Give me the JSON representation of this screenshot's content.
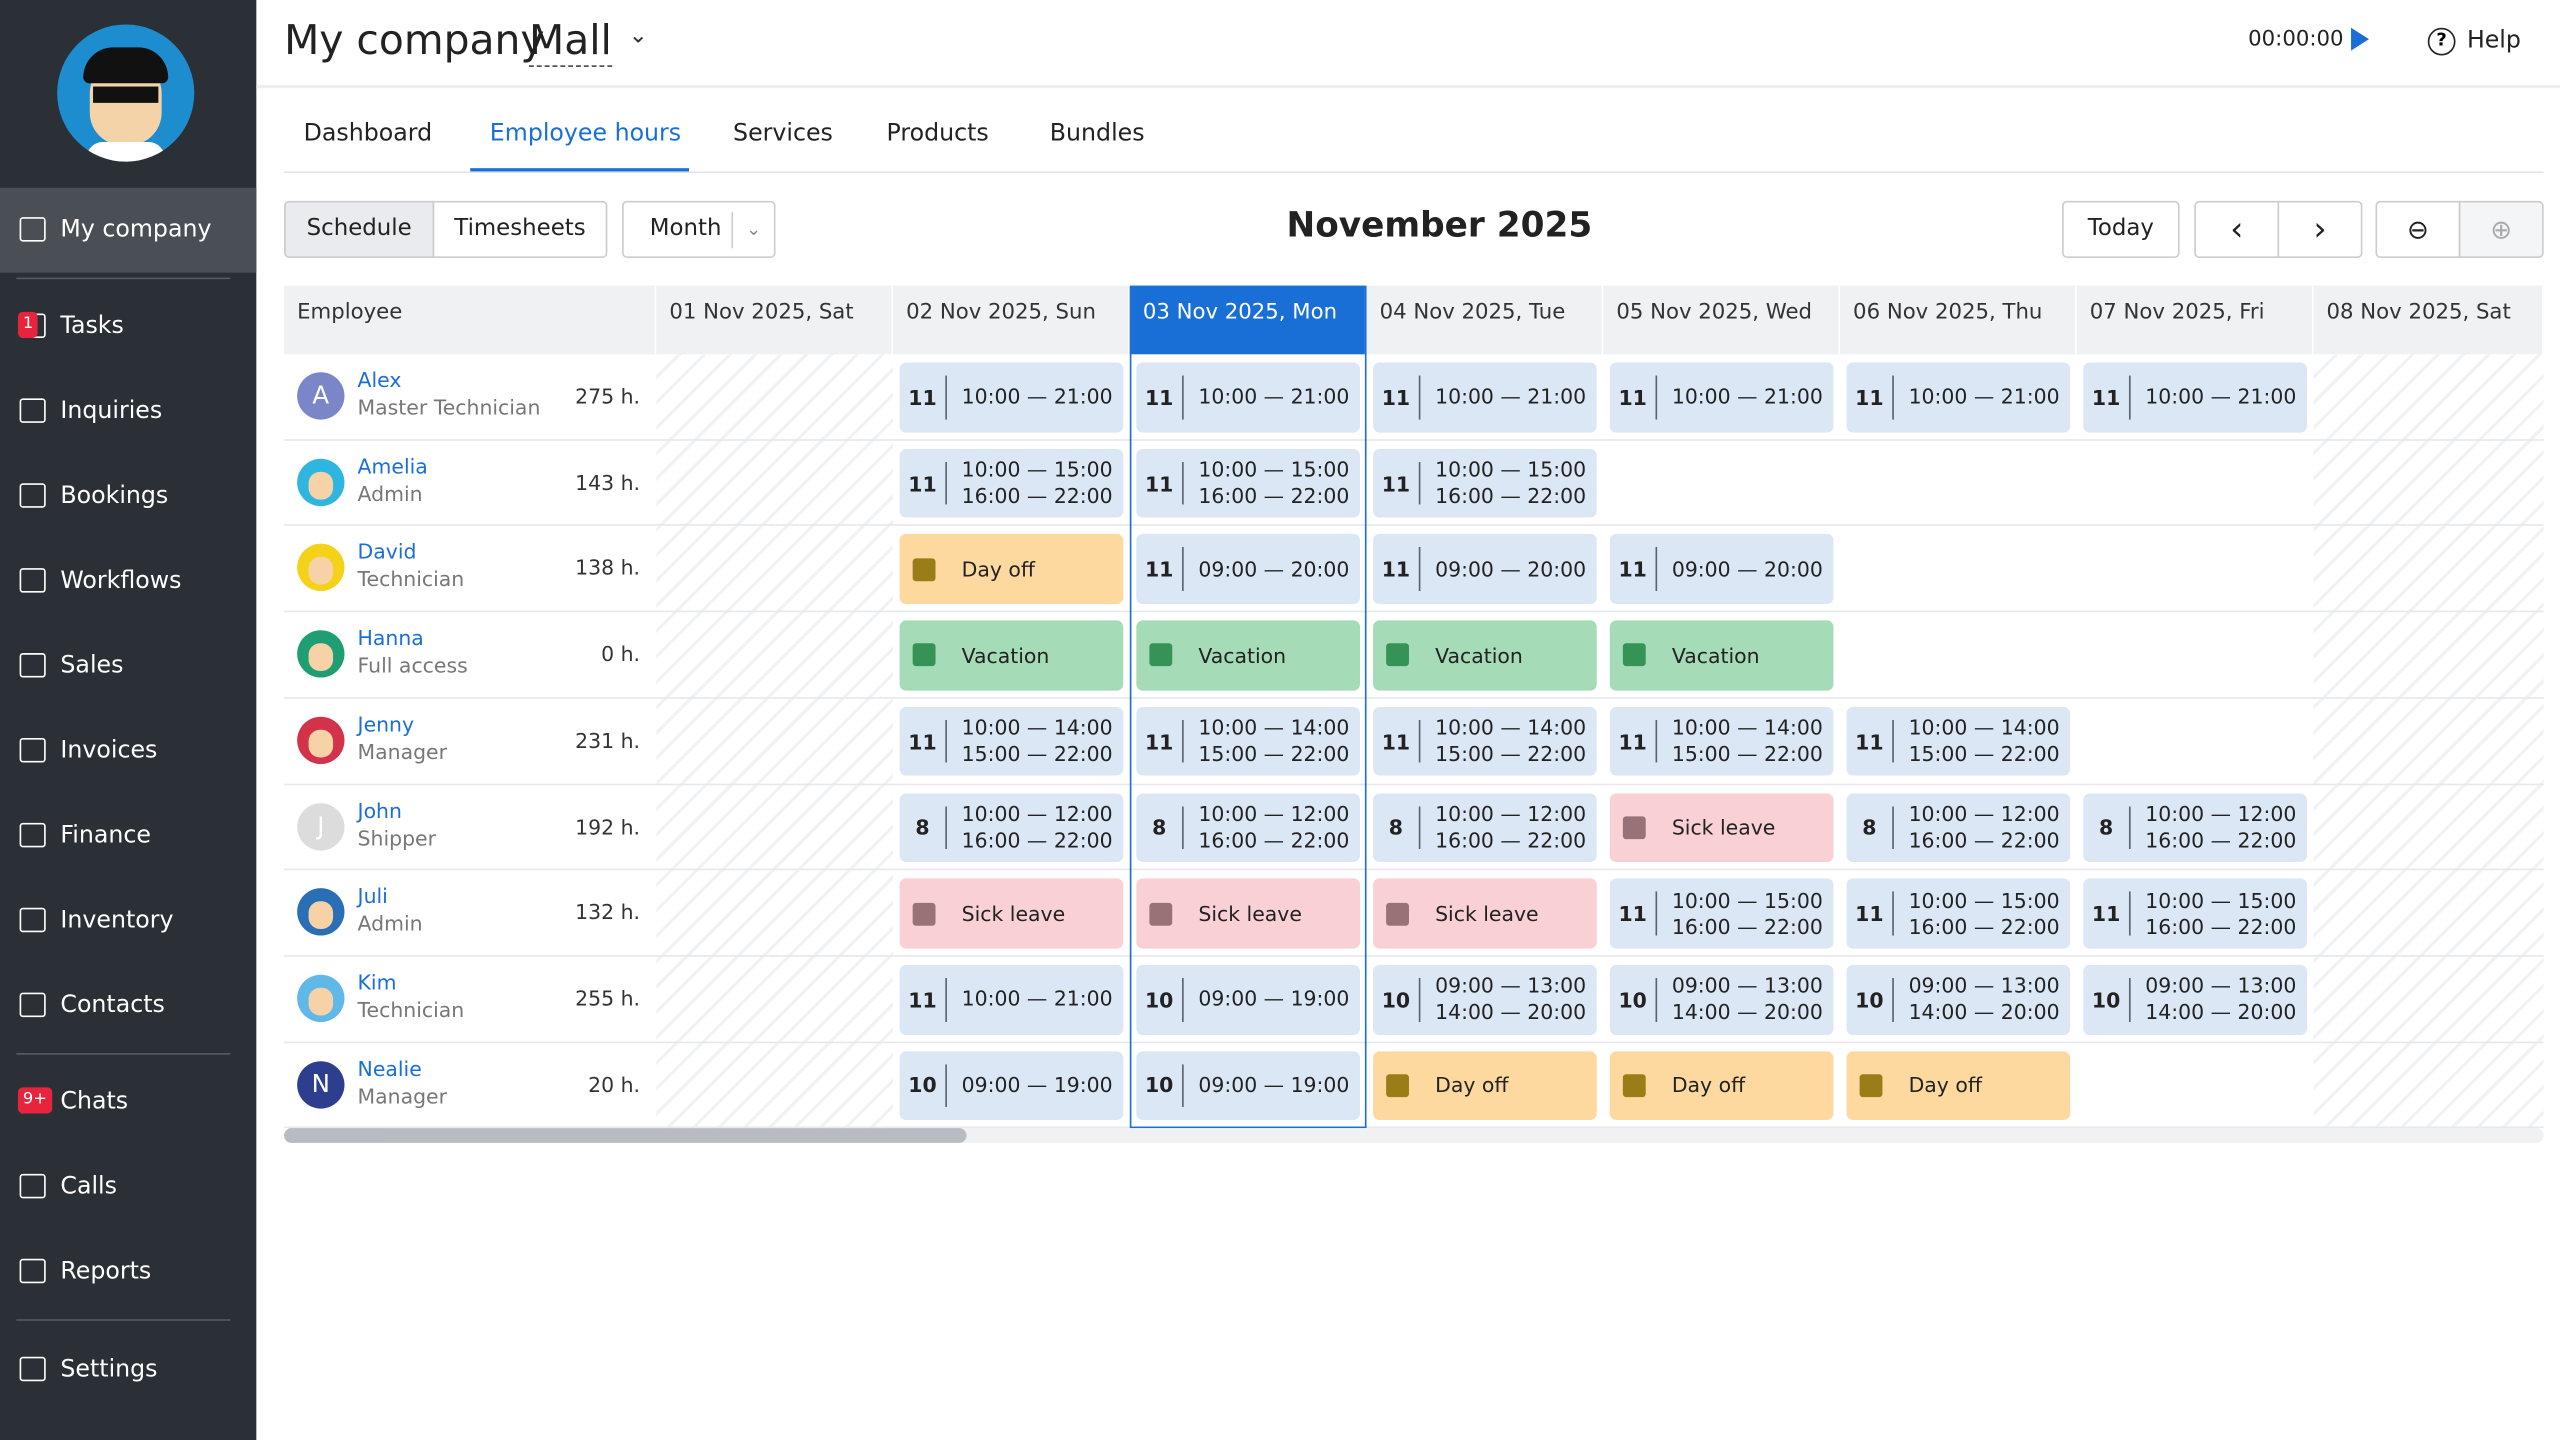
{
  "header": {
    "title": "My company",
    "store": "Mall",
    "timer": "00:00:00",
    "help": "Help"
  },
  "sidebar": {
    "items": [
      {
        "label": "My company"
      },
      {
        "label": "Tasks",
        "badge": "1"
      },
      {
        "label": "Inquiries"
      },
      {
        "label": "Bookings"
      },
      {
        "label": "Workflows"
      },
      {
        "label": "Sales"
      },
      {
        "label": "Invoices"
      },
      {
        "label": "Finance"
      },
      {
        "label": "Inventory"
      },
      {
        "label": "Contacts"
      },
      {
        "label": "Chats",
        "badge": "9+"
      },
      {
        "label": "Calls"
      },
      {
        "label": "Reports"
      },
      {
        "label": "Settings"
      }
    ]
  },
  "tabs": {
    "items": [
      "Dashboard",
      "Employee hours",
      "Services",
      "Products",
      "Bundles"
    ],
    "active": 1
  },
  "toolbar": {
    "views": [
      "Schedule",
      "Timesheets"
    ],
    "period": "Month",
    "title": "November 2025",
    "today": "Today"
  },
  "table": {
    "employee_header": "Employee",
    "today_column": 2,
    "weekend_columns": [
      0,
      7
    ],
    "days": [
      "01 Nov 2025, Sat",
      "02 Nov 2025, Sun",
      "03 Nov 2025, Mon",
      "04 Nov 2025, Tue",
      "05 Nov 2025, Wed",
      "06 Nov 2025, Thu",
      "07 Nov 2025, Fri",
      "08 Nov 2025, Sat"
    ],
    "rows": [
      {
        "name": "Alex",
        "role": "Master Technician",
        "total": "275 h.",
        "avatar": "A",
        "avatar_color": "#7b86c9",
        "cells": [
          null,
          {
            "hours": "11",
            "times": [
              "10:00 — 21:00"
            ]
          },
          {
            "hours": "11",
            "times": [
              "10:00 — 21:00"
            ]
          },
          {
            "hours": "11",
            "times": [
              "10:00 — 21:00"
            ]
          },
          {
            "hours": "11",
            "times": [
              "10:00 — 21:00"
            ]
          },
          {
            "hours": "11",
            "times": [
              "10:00 — 21:00"
            ]
          },
          {
            "hours": "11",
            "times": [
              "10:00 — 21:00"
            ]
          },
          null
        ]
      },
      {
        "name": "Amelia",
        "role": "Admin",
        "total": "143 h.",
        "avatar_color": "#2fb6e0",
        "cells": [
          null,
          {
            "hours": "11",
            "times": [
              "10:00 — 15:00",
              "16:00 — 22:00"
            ]
          },
          {
            "hours": "11",
            "times": [
              "10:00 — 15:00",
              "16:00 — 22:00"
            ]
          },
          {
            "hours": "11",
            "times": [
              "10:00 — 15:00",
              "16:00 — 22:00"
            ]
          },
          null,
          null,
          null,
          null
        ]
      },
      {
        "name": "David",
        "role": "Technician",
        "total": "138 h.",
        "avatar_color": "#f5d21a",
        "cells": [
          null,
          {
            "label": "Day off",
            "color": "#fdd9a0"
          },
          {
            "hours": "11",
            "times": [
              "09:00 — 20:00"
            ]
          },
          {
            "hours": "11",
            "times": [
              "09:00 — 20:00"
            ]
          },
          {
            "hours": "11",
            "times": [
              "09:00 — 20:00"
            ]
          },
          null,
          null,
          null
        ]
      },
      {
        "name": "Hanna",
        "role": "Full access",
        "total": "0 h.",
        "avatar_color": "#1f9e73",
        "cells": [
          null,
          {
            "label": "Vacation",
            "color": "#a6dbb8"
          },
          {
            "label": "Vacation",
            "color": "#a6dbb8"
          },
          {
            "label": "Vacation",
            "color": "#a6dbb8"
          },
          {
            "label": "Vacation",
            "color": "#a6dbb8"
          },
          null,
          null,
          null
        ]
      },
      {
        "name": "Jenny",
        "role": "Manager",
        "total": "231 h.",
        "avatar_color": "#d2334a",
        "cells": [
          null,
          {
            "hours": "11",
            "times": [
              "10:00 — 14:00",
              "15:00 — 22:00"
            ]
          },
          {
            "hours": "11",
            "times": [
              "10:00 — 14:00",
              "15:00 — 22:00"
            ]
          },
          {
            "hours": "11",
            "times": [
              "10:00 — 14:00",
              "15:00 — 22:00"
            ]
          },
          {
            "hours": "11",
            "times": [
              "10:00 — 14:00",
              "15:00 — 22:00"
            ]
          },
          {
            "hours": "11",
            "times": [
              "10:00 — 14:00",
              "15:00 — 22:00"
            ]
          },
          null,
          null
        ]
      },
      {
        "name": "John",
        "role": "Shipper",
        "total": "192 h.",
        "avatar": "J",
        "avatar_color": "#dcdcdc",
        "cells": [
          null,
          {
            "hours": "8",
            "times": [
              "10:00 — 12:00",
              "16:00 — 22:00"
            ]
          },
          {
            "hours": "8",
            "times": [
              "10:00 — 12:00",
              "16:00 — 22:00"
            ]
          },
          {
            "hours": "8",
            "times": [
              "10:00 — 12:00",
              "16:00 — 22:00"
            ]
          },
          {
            "label": "Sick leave",
            "color": "#f9d0d3"
          },
          {
            "hours": "8",
            "times": [
              "10:00 — 12:00",
              "16:00 — 22:00"
            ]
          },
          {
            "hours": "8",
            "times": [
              "10:00 — 12:00",
              "16:00 — 22:00"
            ]
          },
          null
        ]
      },
      {
        "name": "Juli",
        "role": "Admin",
        "total": "132 h.",
        "avatar_color": "#2a6fb5",
        "cells": [
          null,
          {
            "label": "Sick leave",
            "color": "#f9d0d3"
          },
          {
            "label": "Sick leave",
            "color": "#f9d0d3"
          },
          {
            "label": "Sick leave",
            "color": "#f9d0d3"
          },
          {
            "hours": "11",
            "times": [
              "10:00 — 15:00",
              "16:00 — 22:00"
            ]
          },
          {
            "hours": "11",
            "times": [
              "10:00 — 15:00",
              "16:00 — 22:00"
            ]
          },
          {
            "hours": "11",
            "times": [
              "10:00 — 15:00",
              "16:00 — 22:00"
            ]
          },
          null
        ]
      },
      {
        "name": "Kim",
        "role": "Technician",
        "total": "255 h.",
        "avatar_color": "#5fb8e8",
        "cells": [
          null,
          {
            "hours": "11",
            "times": [
              "10:00 — 21:00"
            ]
          },
          {
            "hours": "10",
            "times": [
              "09:00 — 19:00"
            ]
          },
          {
            "hours": "10",
            "times": [
              "09:00 — 13:00",
              "14:00 — 20:00"
            ]
          },
          {
            "hours": "10",
            "times": [
              "09:00 — 13:00",
              "14:00 — 20:00"
            ]
          },
          {
            "hours": "10",
            "times": [
              "09:00 — 13:00",
              "14:00 — 20:00"
            ]
          },
          {
            "hours": "10",
            "times": [
              "09:00 — 13:00",
              "14:00 — 20:00"
            ]
          },
          null
        ]
      },
      {
        "name": "Nealie",
        "role": "Manager",
        "total": "20 h.",
        "avatar": "N",
        "avatar_color": "#2d3e8f",
        "cells": [
          null,
          {
            "hours": "10",
            "times": [
              "09:00 — 19:00"
            ]
          },
          {
            "hours": "10",
            "times": [
              "09:00 — 19:00"
            ]
          },
          {
            "label": "Day off",
            "color": "#fdd9a0"
          },
          {
            "label": "Day off",
            "color": "#fdd9a0"
          },
          {
            "label": "Day off",
            "color": "#fdd9a0"
          },
          null,
          null
        ]
      }
    ]
  }
}
